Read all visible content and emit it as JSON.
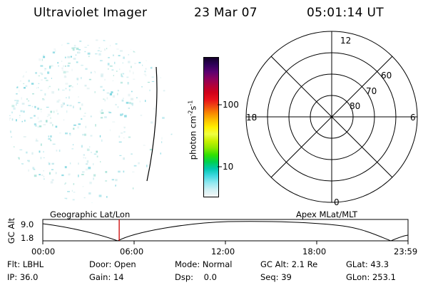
{
  "header": {
    "title": "Ultraviolet Imager",
    "date": "23 Mar 07",
    "time": "05:01:14 UT"
  },
  "colorbar": {
    "label": "photon cm",
    "label_sup1": "-2",
    "label_mid": "s",
    "label_sup2": "-1",
    "ticks": [
      "100",
      "10"
    ],
    "colors": [
      "#14002a",
      "#2e0058",
      "#5a0070",
      "#8a005e",
      "#b0003a",
      "#d0001a",
      "#e8101a",
      "#f04a10",
      "#f88a00",
      "#fcc000",
      "#fff000",
      "#f0ff40",
      "#c8f000",
      "#8ce800",
      "#30e000",
      "#00d050",
      "#00c8b0",
      "#40d8e0",
      "#90e8f0",
      "#d0f0f4",
      "#f6f8f8"
    ]
  },
  "polar": {
    "mlt_labels": {
      "top": "12",
      "left": "18",
      "right": "6",
      "bottom": "0"
    },
    "lat_labels": [
      "60",
      "70",
      "80"
    ]
  },
  "timeline": {
    "left_title": "Geographic Lat/Lon",
    "right_title": "Apex MLat/MLT",
    "axis_label": "GC Alt",
    "y_values": [
      "9.0",
      "1.8"
    ],
    "x_ticks": [
      "00:00",
      "06:00",
      "12:00",
      "18:00",
      "23:59"
    ],
    "marker_fraction": 0.2092,
    "marker_color": "#cc0000"
  },
  "info": {
    "row1": [
      {
        "k": "Flt:",
        "v": "LBHL"
      },
      {
        "k": "Door:",
        "v": "Open"
      },
      {
        "k": "Mode:",
        "v": "Normal"
      },
      {
        "k": "GC Alt:",
        "v": "2.1 Re"
      },
      {
        "k": "GLat:",
        "v": "43.3"
      }
    ],
    "row2": [
      {
        "k": "IP:",
        "v": "36.0"
      },
      {
        "k": "Gain:",
        "v": "14"
      },
      {
        "k": "Dsp:",
        "v": "0.0"
      },
      {
        "k": "Seq:",
        "v": "39"
      },
      {
        "k": "GLon:",
        "v": "253.1"
      }
    ]
  }
}
